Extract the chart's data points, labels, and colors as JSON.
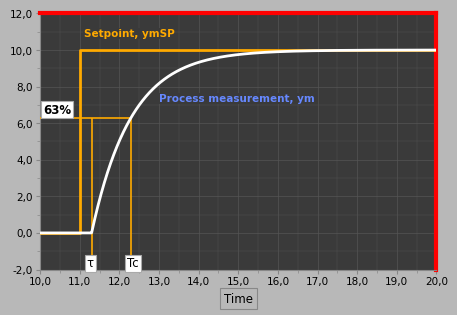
{
  "xlim": [
    10.0,
    20.0
  ],
  "ylim": [
    -2.0,
    12.0
  ],
  "xticks": [
    10.0,
    11.0,
    12.0,
    13.0,
    14.0,
    15.0,
    16.0,
    17.0,
    18.0,
    19.0,
    20.0
  ],
  "xticklabels": [
    "10,0",
    "11,0",
    "12,0",
    "13,0",
    "14,0",
    "15,0",
    "16,0",
    "17,0",
    "18,0",
    "19,0",
    "20,0"
  ],
  "yticks": [
    -2.0,
    0.0,
    2.0,
    4.0,
    6.0,
    8.0,
    10.0,
    12.0
  ],
  "yticklabels": [
    "-2,0",
    "0,0",
    "2,0",
    "4,0",
    "6,0",
    "8,0",
    "10,0",
    "12,0"
  ],
  "xlabel": "Time",
  "bg_color": "#3a3a3a",
  "fig_bg": "#b8b8b8",
  "grid_color": "#555555",
  "setpoint_color": "#ffaa00",
  "process_color": "#ffffff",
  "red_border": "#ff0000",
  "step_time": 11.0,
  "setpoint_value": 10.0,
  "dead_time": 11.3,
  "tc_time": 12.3,
  "process_tau": 1.0,
  "level_63": 6.3,
  "label_setpoint": "Setpoint, ymSP",
  "label_process": "Process measurement, ym",
  "label_63": "63%",
  "label_tau": "τ",
  "label_tc": "Tc",
  "tick_fontsize": 7.5,
  "label_fontsize": 8.0,
  "annotation_fontsize": 8.0
}
